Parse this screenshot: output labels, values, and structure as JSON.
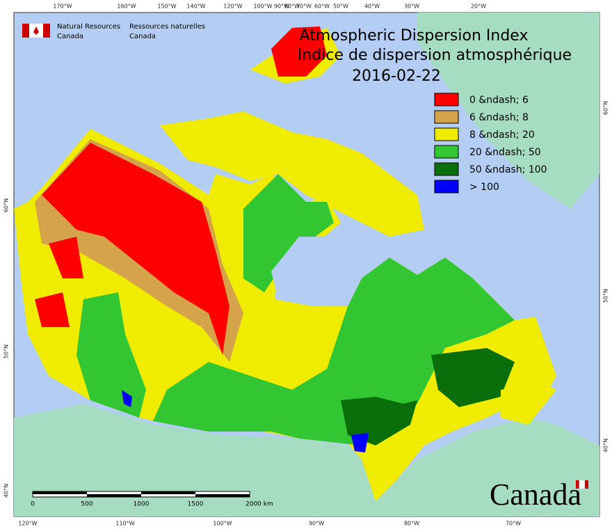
{
  "agency": {
    "en_line1": "Natural Resources",
    "en_line2": "Canada",
    "fr_line1": "Ressources naturelles",
    "fr_line2": "Canada"
  },
  "title": {
    "line1": "Atmospheric Dispersion Index",
    "line2": "Indice de dispersion atmosphérique",
    "date": "2016-02-22"
  },
  "legend": [
    {
      "label": "0 &ndash; 6",
      "color": "#ff0000"
    },
    {
      "label": "6 &ndash; 8",
      "color": "#d4a34a"
    },
    {
      "label": "8 &ndash; 20",
      "color": "#f0ec00"
    },
    {
      "label": "20 &ndash; 50",
      "color": "#33c633"
    },
    {
      "label": "50 &ndash; 100",
      "color": "#0a6e0a"
    },
    {
      "label": "> 100",
      "color": "#0000ff"
    }
  ],
  "graticule": {
    "top": [
      "170°W",
      "160°W",
      "150°W",
      "140°W",
      "120°W",
      "100°W",
      "90°W",
      "80°W",
      "70°W",
      "60°W",
      "50°W",
      "40°W",
      "30°W",
      "20°W"
    ],
    "bottom": [
      "120°W",
      "110°W",
      "100°W",
      "90°W",
      "80°W",
      "70°W"
    ],
    "left": [
      "60°N",
      "50°N",
      "40°N"
    ],
    "right": [
      "60°N",
      "50°N",
      "40°N"
    ]
  },
  "scale_bar": {
    "labels": [
      "0",
      "500",
      "1000",
      "1500",
      "2000 km"
    ]
  },
  "wordmark": "Canada"
}
